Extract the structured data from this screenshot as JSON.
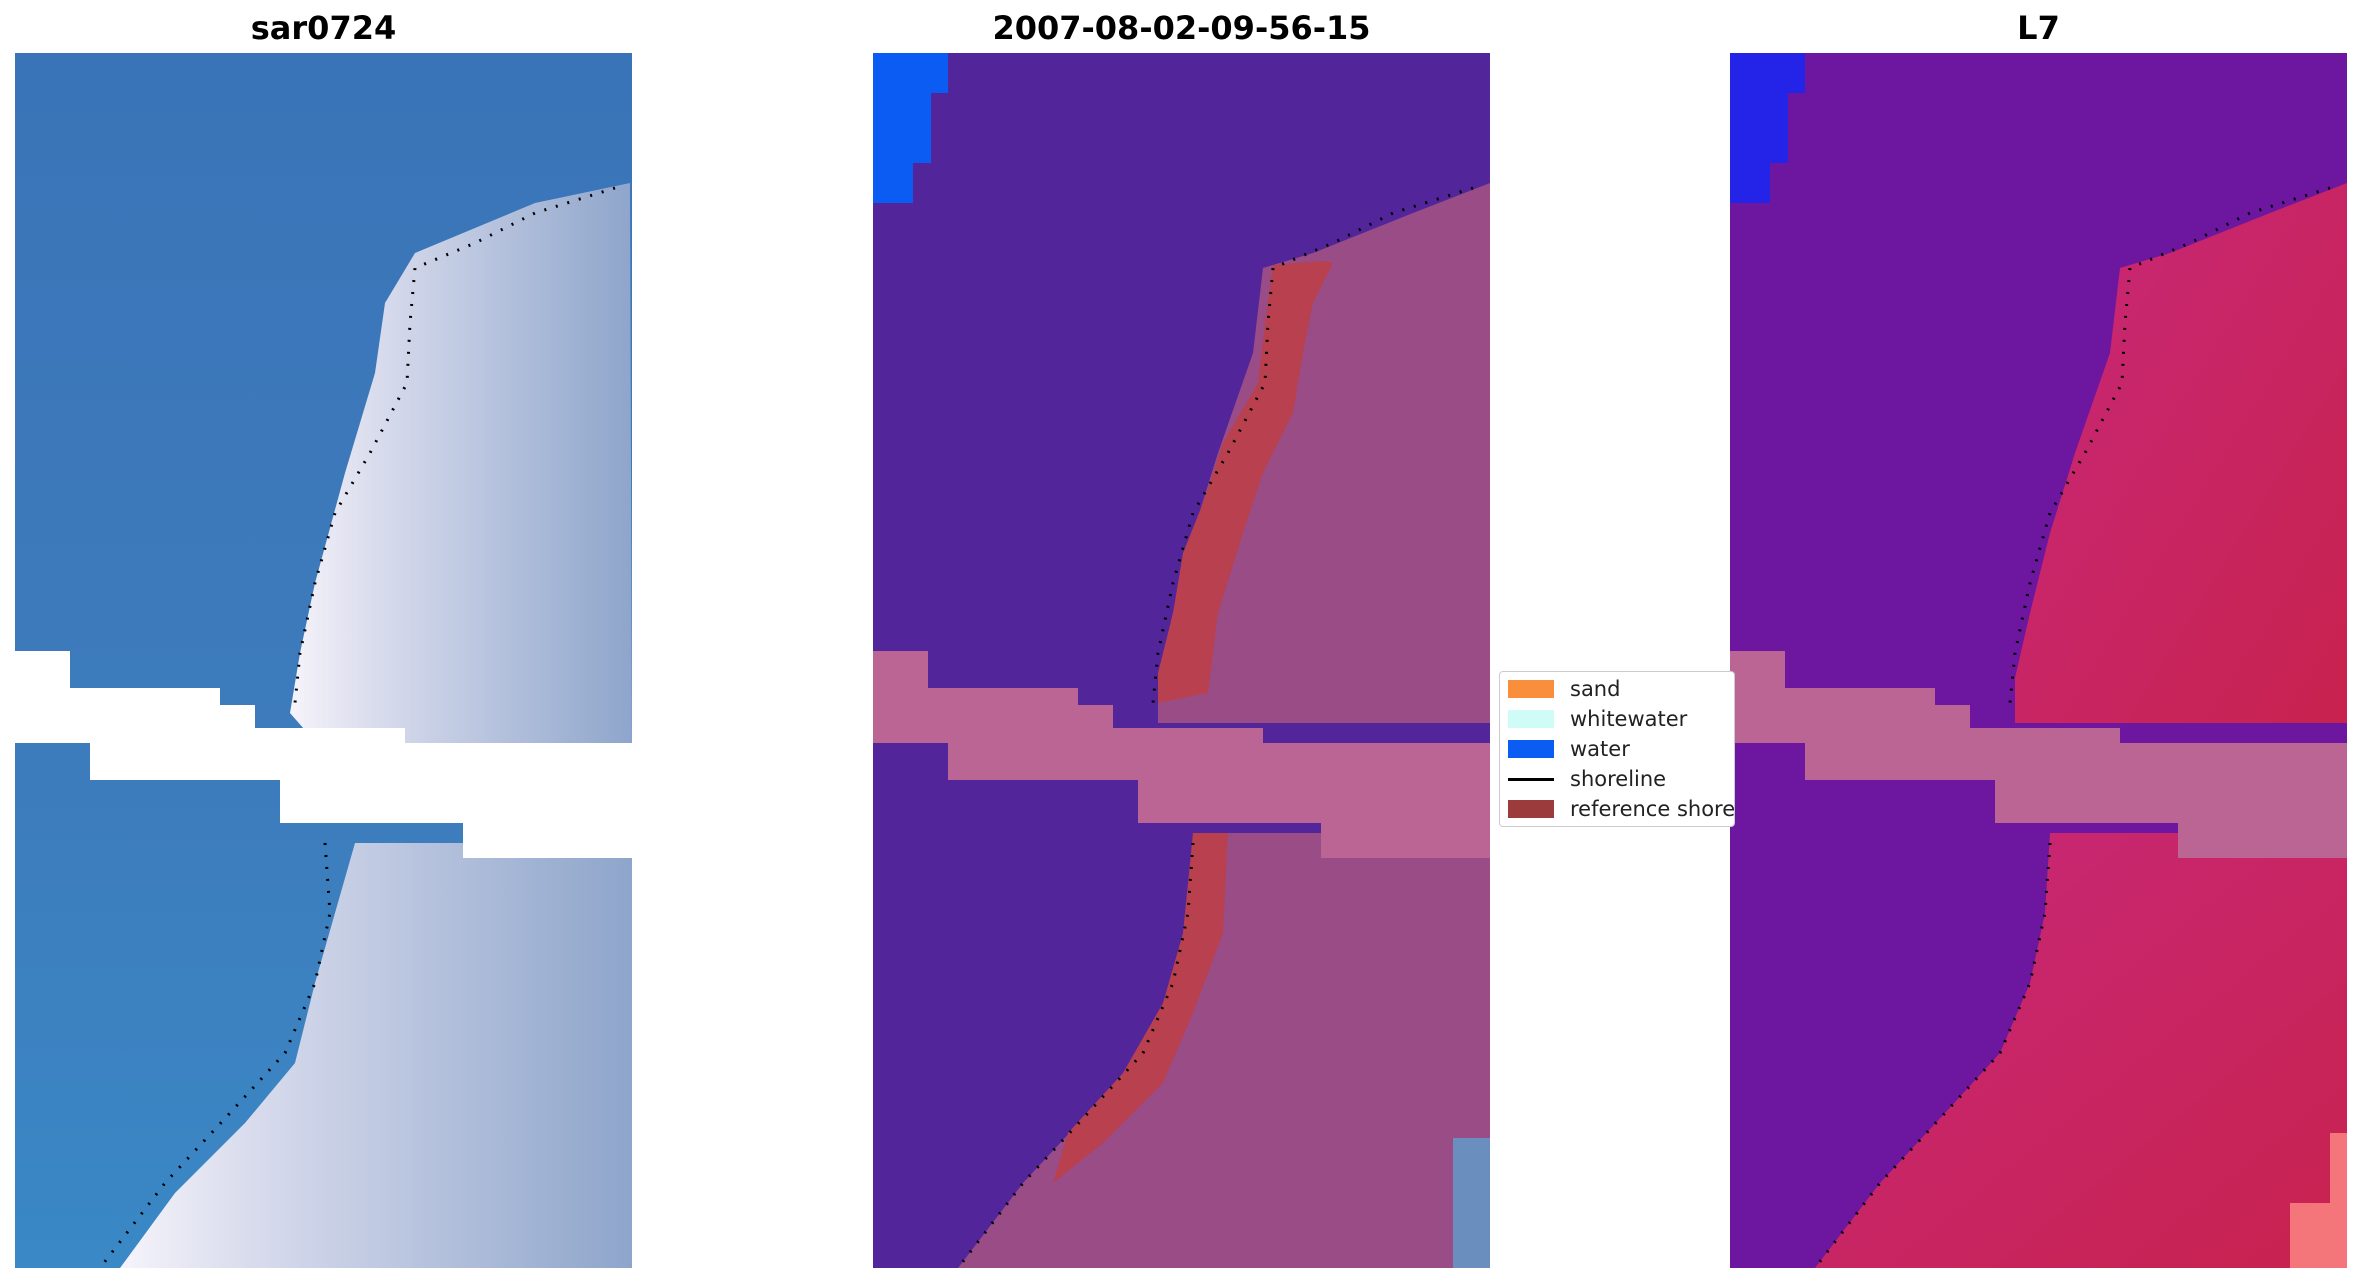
{
  "panels": {
    "left": {
      "title": "sar0724"
    },
    "middle": {
      "title": "2007-08-02-09-56-15"
    },
    "right": {
      "title": "L7"
    }
  },
  "legend": {
    "items": [
      {
        "label": "sand",
        "color": "#f98e3d",
        "kind": "patch"
      },
      {
        "label": "whitewater",
        "color": "#cffcf7",
        "kind": "patch"
      },
      {
        "label": "water",
        "color": "#0a5cf2",
        "kind": "patch"
      },
      {
        "label": "shoreline",
        "color": "#000000",
        "kind": "line"
      },
      {
        "label": "reference shore",
        "color": "#9c3b3b",
        "kind": "patch"
      }
    ]
  },
  "colors": {
    "rgb_water": "#3d7ab8",
    "rgb_land": "#b9c6de",
    "class_water": "#52259a",
    "class_land": "#9a4c86",
    "class_reference": "#b8404f",
    "class_band": "#bb6594",
    "class_water_corner": "#0a5cf2",
    "index_water": "#6d169f",
    "index_land": "#c32356",
    "index_band": "#bb6594",
    "nodata": "#ffffff",
    "shoreline": "#000000"
  }
}
